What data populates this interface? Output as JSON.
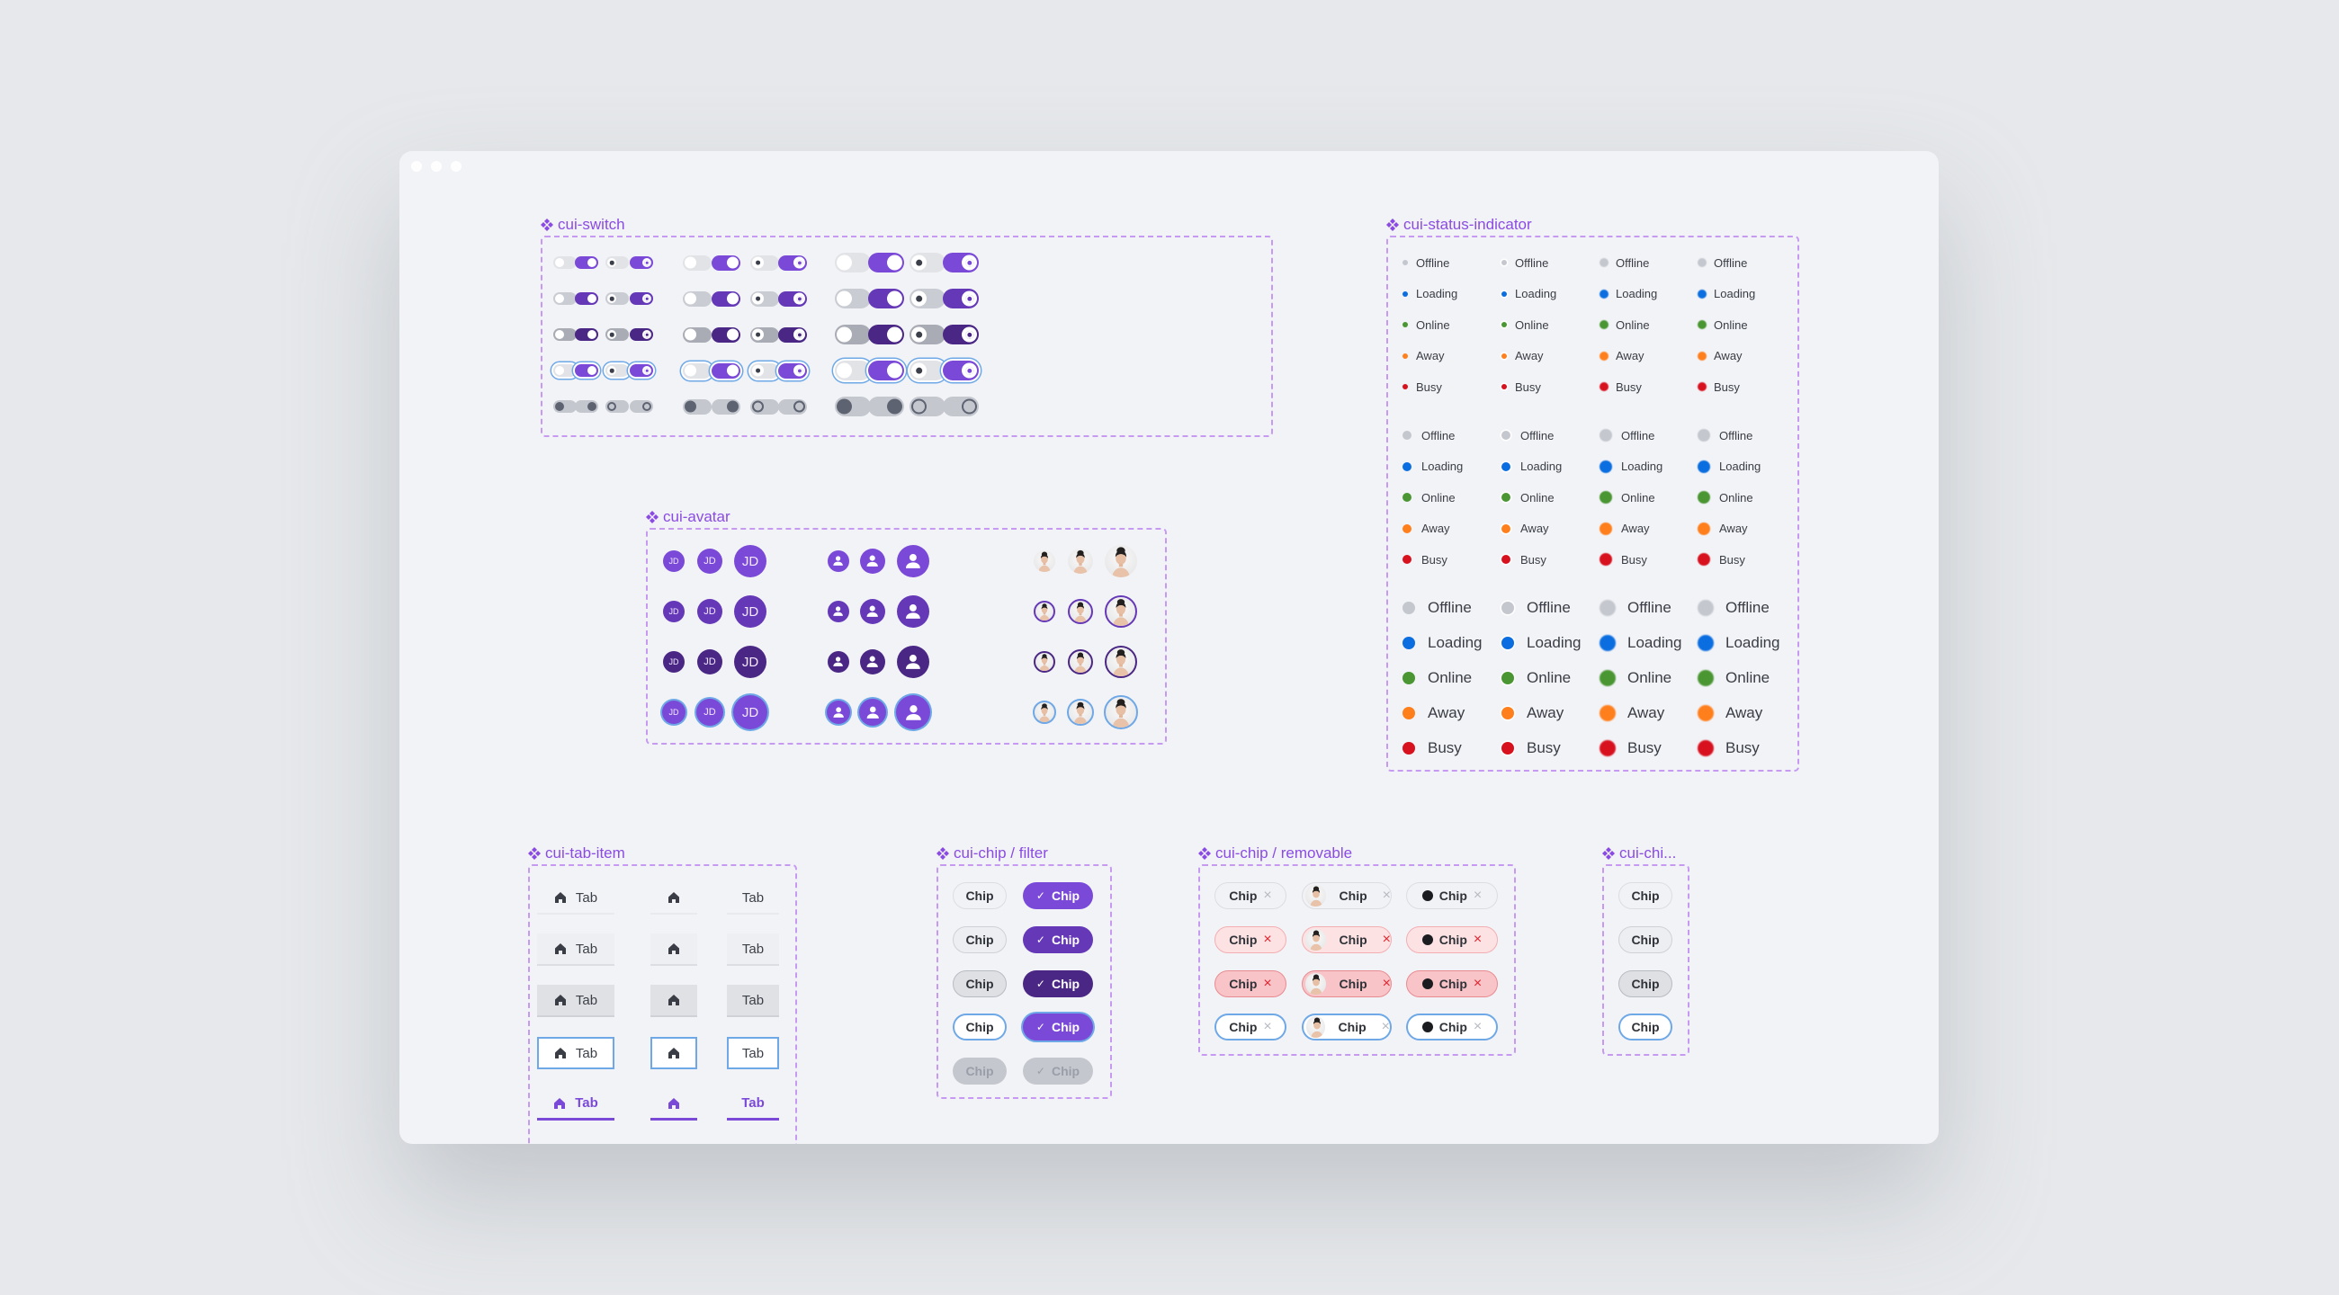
{
  "window": {
    "controls": [
      "close",
      "minimize",
      "maximize"
    ]
  },
  "colors": {
    "accent": "#8a4be3",
    "primary": "#7b49d8",
    "primary_hover": "#6538b8",
    "primary_pressed": "#4a2784",
    "focus": "#6ea8e6",
    "frame": "#c79af2",
    "offline": "#c4c7ce",
    "loading": "#0b6ee0",
    "online": "#4a9632",
    "away": "#ff7f1c",
    "busy": "#d8111f"
  },
  "switch": {
    "title": "cui-switch",
    "states": [
      "default",
      "hover",
      "pressed",
      "focus",
      "disabled"
    ],
    "sizes": [
      "small",
      "medium",
      "large"
    ],
    "variants": [
      "off",
      "on",
      "off-icon",
      "on-icon"
    ]
  },
  "status": {
    "title": "cui-status-indicator",
    "labels": [
      "Offline",
      "Loading",
      "Online",
      "Away",
      "Busy"
    ]
  },
  "avatar": {
    "title": "cui-avatar",
    "initials": "JD",
    "types": [
      "initials",
      "icon",
      "photo"
    ],
    "states": [
      "default",
      "hover",
      "pressed",
      "focus"
    ]
  },
  "tab": {
    "title": "cui-tab-item",
    "label": "Tab",
    "icon": "home-icon",
    "states": [
      "default",
      "hover",
      "pressed",
      "focus",
      "selected"
    ]
  },
  "chip_filter": {
    "title": "cui-chip / filter",
    "label": "Chip",
    "check": "✓",
    "states": [
      "default",
      "hover",
      "pressed",
      "focus",
      "disabled"
    ]
  },
  "chip_removable": {
    "title": "cui-chip / removable",
    "label": "Chip",
    "remove": "×",
    "states": [
      "default",
      "hover",
      "pressed",
      "focus"
    ]
  },
  "chip_basic": {
    "title": "cui-chi...",
    "label": "Chip",
    "states": [
      "default",
      "hover",
      "pressed",
      "focus"
    ]
  }
}
